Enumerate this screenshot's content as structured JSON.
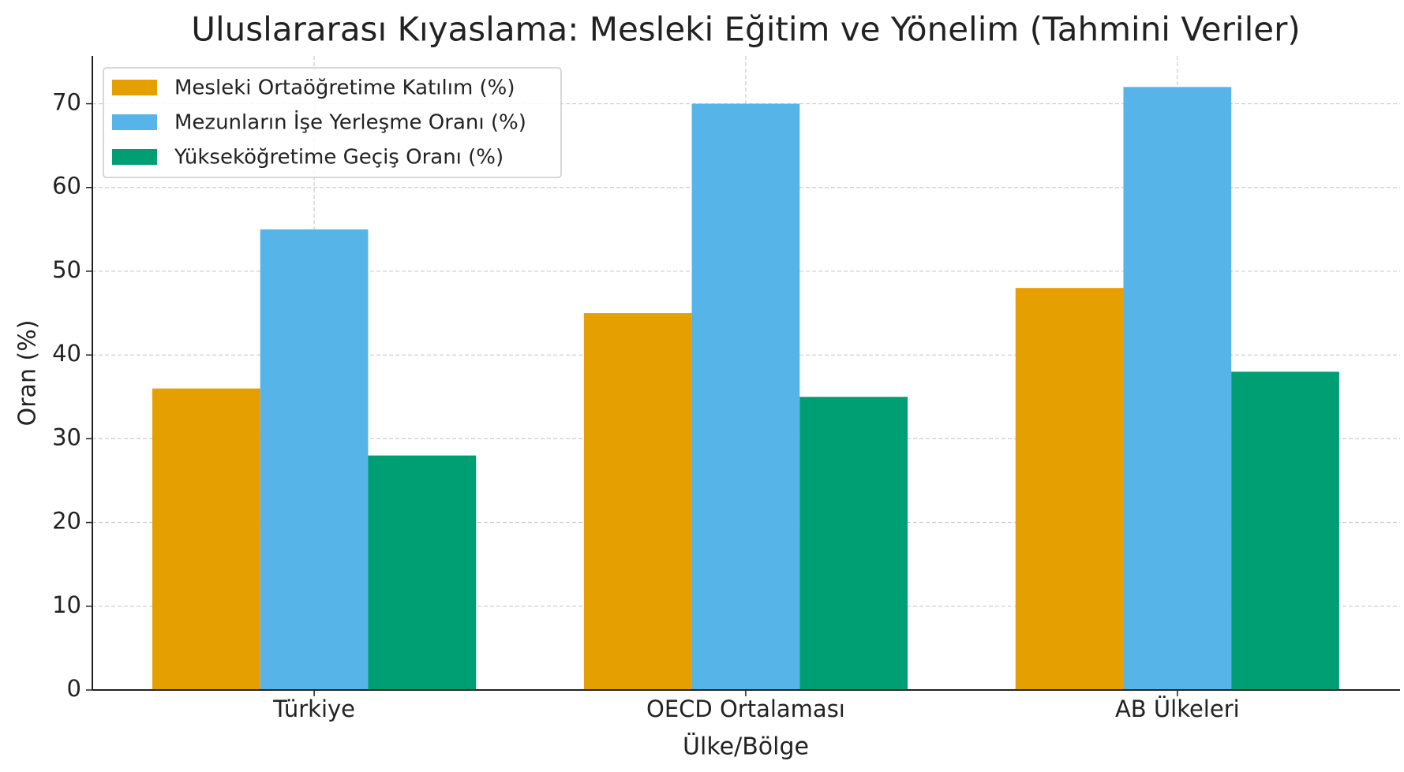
{
  "chart_data": {
    "type": "bar",
    "title": "Uluslararası Kıyaslama: Mesleki Eğitim ve Yönelim (Tahmini Veriler)",
    "x_label": "Ülke/Bölge",
    "y_label": "Oran (%)",
    "categories": [
      "Türkiye",
      "OECD Ortalaması",
      "AB Ülkeleri"
    ],
    "series": [
      {
        "name": "Mesleki Ortaöğretime Katılım (%)",
        "color": "#e69f00",
        "values": [
          36,
          45,
          48
        ]
      },
      {
        "name": "Mezunların İşe Yerleşme Oranı (%)",
        "color": "#56b4e9",
        "values": [
          55,
          70,
          72
        ]
      },
      {
        "name": "Yükseköğretime Geçiş Oranı (%)",
        "color": "#009e73",
        "values": [
          28,
          35,
          38
        ]
      }
    ],
    "ylim": [
      0,
      75.7
    ],
    "yticks": [
      0,
      10,
      20,
      30,
      40,
      50,
      60,
      70
    ],
    "grid": true,
    "legend": "upper left"
  }
}
